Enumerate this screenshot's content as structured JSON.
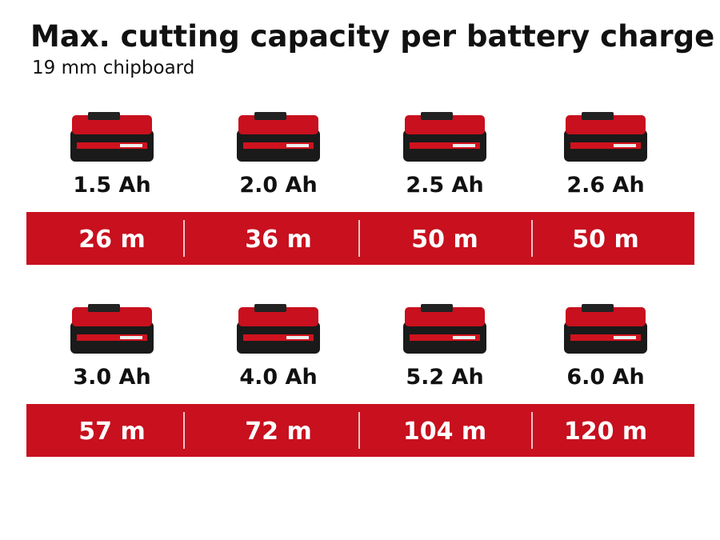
{
  "header": {
    "title": "Max. cutting capacity per battery charge",
    "subtitle": "19 mm chipboard"
  },
  "rows": [
    {
      "items": [
        {
          "capacity": "1.5 Ah",
          "cutting": "26 m"
        },
        {
          "capacity": "2.0 Ah",
          "cutting": "36 m"
        },
        {
          "capacity": "2.5 Ah",
          "cutting": "50 m"
        },
        {
          "capacity": "2.6 Ah",
          "cutting": "50 m"
        }
      ]
    },
    {
      "items": [
        {
          "capacity": "3.0 Ah",
          "cutting": "57 m"
        },
        {
          "capacity": "4.0 Ah",
          "cutting": "72 m"
        },
        {
          "capacity": "5.2 Ah",
          "cutting": "104 m"
        },
        {
          "capacity": "6.0 Ah",
          "cutting": "120 m"
        }
      ]
    }
  ]
}
